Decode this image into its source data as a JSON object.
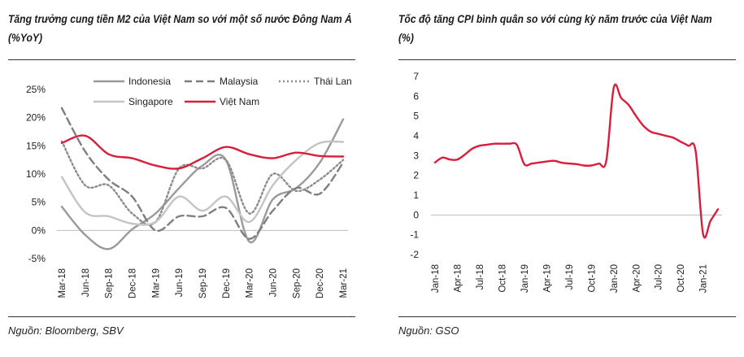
{
  "left": {
    "title": "Tăng trưởng cung tiền M2 của Việt Nam so với một số nước Đông Nam Á (%YoY)",
    "source": "Nguồn: Bloomberg, SBV"
  },
  "right": {
    "title": "Tốc độ tăng CPI bình quân so với cùng kỳ năm trước của Việt Nam (%)",
    "source": "Nguồn: GSO"
  },
  "chart_data": [
    {
      "type": "line",
      "title": "Tăng trưởng cung tiền M2 của Việt Nam so với một số nước Đông Nam Á (%YoY)",
      "x_categories": [
        "Mar-18",
        "Jun-18",
        "Sep-18",
        "Dec-18",
        "Mar-19",
        "Jun-19",
        "Sep-19",
        "Dec-19",
        "Mar-20",
        "Jun-20",
        "Sep-20",
        "Dec-20",
        "Mar-21"
      ],
      "y_ticks": [
        "25%",
        "20%",
        "15%",
        "10%",
        "5%",
        "0%",
        "-5%"
      ],
      "ylim": [
        -5,
        25
      ],
      "grid": false,
      "legend_position": "top",
      "series": [
        {
          "name": "Indonesia",
          "color": "#9a9a9a",
          "dash": "solid",
          "values": [
            4.2,
            -0.8,
            -3.3,
            0.2,
            3.0,
            7.5,
            11.5,
            12.5,
            -2.0,
            5.5,
            7.5,
            12.0,
            19.7
          ]
        },
        {
          "name": "Malaysia",
          "color": "#7f7f7f",
          "dash": "dashed",
          "values": [
            21.7,
            14.0,
            9.0,
            6.0,
            0.0,
            2.5,
            2.5,
            4.0,
            -1.5,
            3.5,
            7.5,
            6.5,
            12.0
          ]
        },
        {
          "name": "Thái Lan",
          "color": "#8c8c8c",
          "dash": "dotted",
          "values": [
            15.8,
            8.0,
            8.0,
            3.0,
            1.5,
            11.0,
            11.0,
            12.5,
            3.0,
            10.0,
            7.0,
            9.0,
            12.5
          ]
        },
        {
          "name": "Singapore",
          "color": "#c4c4c4",
          "dash": "solid",
          "values": [
            9.5,
            3.2,
            2.5,
            1.2,
            1.5,
            6.0,
            3.5,
            6.0,
            1.5,
            8.0,
            12.5,
            15.5,
            15.7
          ]
        },
        {
          "name": "Việt Nam",
          "color": "#d81e3c",
          "dash": "solid",
          "values": [
            15.5,
            16.8,
            13.5,
            12.8,
            11.5,
            11.0,
            12.8,
            14.8,
            13.5,
            12.8,
            13.8,
            13.2,
            13.1
          ]
        }
      ]
    },
    {
      "type": "line",
      "title": "Tốc độ tăng CPI bình quân so với cùng kỳ năm trước của Việt Nam (%)",
      "x_tick_labels": [
        "Jan-18",
        "Apr-18",
        "Jul-18",
        "Oct-18",
        "Jan-19",
        "Apr-19",
        "Jul-19",
        "Oct-19",
        "Jan-20",
        "Apr-20",
        "Jul-20",
        "Oct-20",
        "Jan-21"
      ],
      "y_ticks": [
        "7",
        "6",
        "5",
        "4",
        "3",
        "2",
        "1",
        "0",
        "-1",
        "-2"
      ],
      "ylim": [
        -2,
        7
      ],
      "grid": false,
      "series": [
        {
          "color": "#d81e3c",
          "x": [
            "Jan-18",
            "Feb-18",
            "Mar-18",
            "Apr-18",
            "May-18",
            "Jun-18",
            "Jul-18",
            "Aug-18",
            "Sep-18",
            "Oct-18",
            "Nov-18",
            "Dec-18",
            "Jan-19",
            "Feb-19",
            "Mar-19",
            "Apr-19",
            "May-19",
            "Jun-19",
            "Jul-19",
            "Aug-19",
            "Sep-19",
            "Oct-19",
            "Nov-19",
            "Dec-19",
            "Jan-20",
            "Feb-20",
            "Mar-20",
            "Apr-20",
            "May-20",
            "Jun-20",
            "Jul-20",
            "Aug-20",
            "Sep-20",
            "Oct-20",
            "Nov-20",
            "Dec-20",
            "Jan-21",
            "Feb-21",
            "Mar-21"
          ],
          "values": [
            2.65,
            2.9,
            2.8,
            2.8,
            3.05,
            3.35,
            3.5,
            3.55,
            3.6,
            3.6,
            3.6,
            3.54,
            2.56,
            2.6,
            2.65,
            2.7,
            2.74,
            2.64,
            2.6,
            2.57,
            2.5,
            2.5,
            2.6,
            2.73,
            6.43,
            5.91,
            5.56,
            5.0,
            4.5,
            4.2,
            4.1,
            4.0,
            3.9,
            3.7,
            3.5,
            3.23,
            -0.97,
            -0.3,
            0.29
          ]
        }
      ]
    }
  ]
}
